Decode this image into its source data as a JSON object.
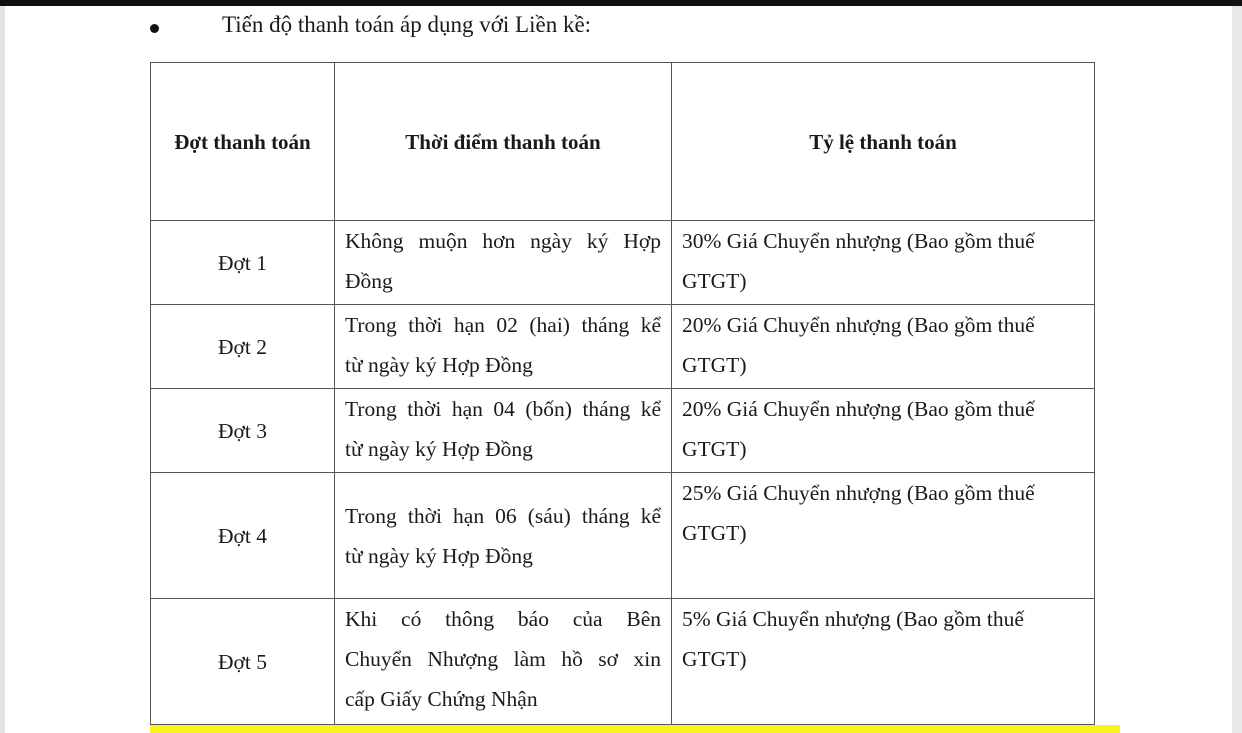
{
  "heading": "Tiến độ thanh toán áp dụng với Liền kề:",
  "table": {
    "headers": [
      "Đợt thanh toán",
      "Thời điểm thanh toán",
      "Tỷ lệ thanh toán"
    ],
    "rows": [
      {
        "installment": "Đợt 1",
        "timing": [
          "Không muộn hơn ngày ký Hợp",
          "Đồng"
        ],
        "rate": [
          "30% Giá Chuyển nhượng (Bao gồm thuế",
          "GTGT)"
        ]
      },
      {
        "installment": "Đợt 2",
        "timing": [
          "Trong thời hạn 02 (hai) tháng kể",
          "từ ngày ký Hợp Đồng"
        ],
        "rate": [
          "20% Giá Chuyển nhượng (Bao gồm thuế",
          "GTGT)"
        ]
      },
      {
        "installment": "Đợt 3",
        "timing": [
          "Trong thời hạn 04 (bốn) tháng kể",
          "từ ngày ký Hợp Đồng"
        ],
        "rate": [
          "20% Giá Chuyển nhượng (Bao gồm thuế",
          "GTGT)"
        ]
      },
      {
        "installment": "Đợt 4",
        "timing": [
          "Trong thời hạn 06 (sáu) tháng kể",
          "từ ngày ký Hợp Đồng"
        ],
        "rate": [
          "25% Giá Chuyển nhượng (Bao gồm thuế",
          "GTGT)"
        ]
      },
      {
        "installment": "Đợt 5",
        "timing": [
          "Khi có thông báo của Bên",
          "Chuyển Nhượng làm hồ sơ xin",
          "cấp Giấy Chứng Nhận"
        ],
        "rate": [
          "5% Giá Chuyển nhượng (Bao gồm thuế",
          "GTGT)"
        ]
      }
    ]
  },
  "colors": {
    "highlight": "#f6f51c",
    "border": "#555555"
  }
}
